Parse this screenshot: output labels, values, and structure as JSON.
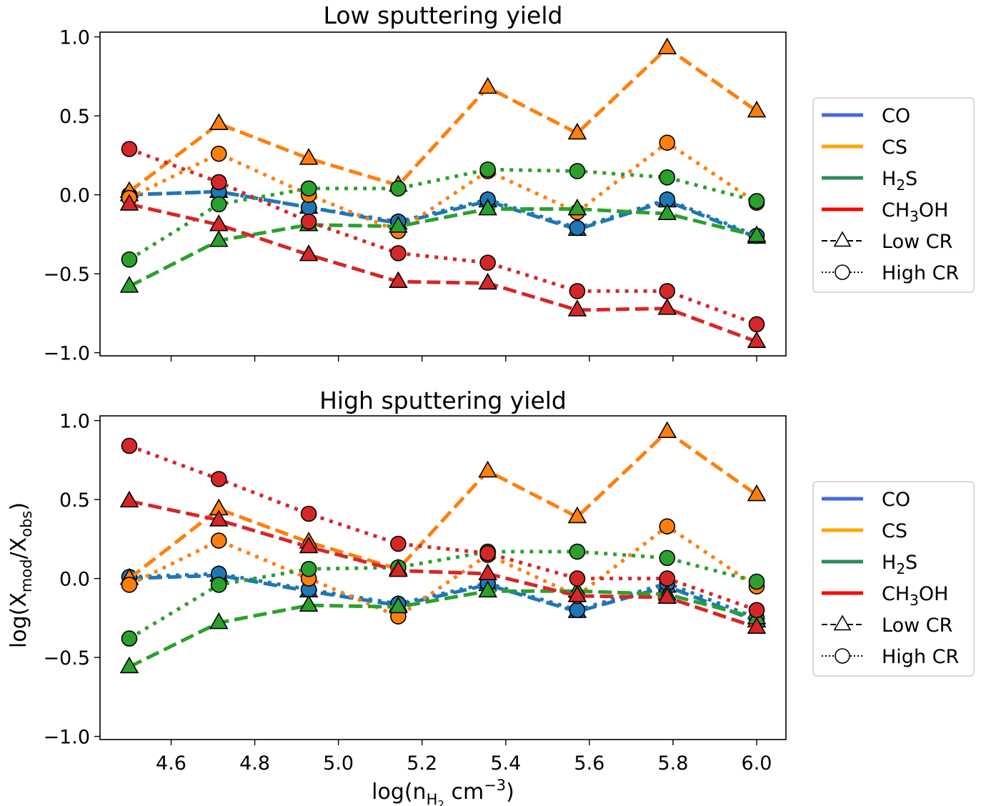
{
  "figure": {
    "ylabel": "log(X_mod/X_obs)",
    "xlabel": "log(n_H2 cm^-3)"
  },
  "legend": {
    "entries": [
      {
        "label": "CO",
        "color": "#4169e1",
        "kind": "line"
      },
      {
        "label": "CS",
        "color": "#ffa500",
        "kind": "line"
      },
      {
        "label": "H2S",
        "color": "#2e8b57",
        "kind": "line"
      },
      {
        "label": "CH3OH",
        "color": "#ff0000",
        "kind": "line"
      },
      {
        "label": "Low CR",
        "kind": "dashed-triangle"
      },
      {
        "label": "High CR",
        "kind": "dotted-circle"
      }
    ]
  },
  "chart_data": [
    {
      "type": "line",
      "title": "Low sputtering yield",
      "xlim": [
        4.43,
        6.07
      ],
      "ylim": [
        -1.02,
        1.03
      ],
      "xticks": [
        4.6,
        4.8,
        5.0,
        5.2,
        5.4,
        5.6,
        5.8,
        6.0
      ],
      "yticks": [
        -1.0,
        -0.5,
        0.0,
        0.5,
        1.0
      ],
      "show_xticklabels": false,
      "x": [
        4.5,
        4.714,
        4.929,
        5.143,
        5.357,
        5.571,
        5.786,
        6.0
      ],
      "series": [
        {
          "name": "CO",
          "cr": "Low CR",
          "marker": "triangle",
          "color": "#1f77b4",
          "values": [
            0.0,
            0.02,
            -0.08,
            -0.18,
            -0.04,
            -0.22,
            -0.04,
            -0.27
          ]
        },
        {
          "name": "CO",
          "cr": "High CR",
          "marker": "circle",
          "color": "#1f77b4",
          "values": [
            0.0,
            0.02,
            -0.08,
            -0.17,
            -0.03,
            -0.21,
            -0.03,
            -0.26
          ]
        },
        {
          "name": "CS",
          "cr": "Low CR",
          "marker": "triangle",
          "color": "#ff7f0e",
          "values": [
            0.02,
            0.45,
            0.23,
            0.06,
            0.68,
            0.39,
            0.93,
            0.53
          ]
        },
        {
          "name": "CS",
          "cr": "High CR",
          "marker": "circle",
          "color": "#ff7f0e",
          "values": [
            -0.02,
            0.26,
            0.0,
            -0.23,
            0.15,
            -0.11,
            0.33,
            -0.05
          ]
        },
        {
          "name": "H2S",
          "cr": "Low CR",
          "marker": "triangle",
          "color": "#2ca02c",
          "values": [
            -0.58,
            -0.29,
            -0.19,
            -0.2,
            -0.09,
            -0.09,
            -0.12,
            -0.26
          ]
        },
        {
          "name": "H2S",
          "cr": "High CR",
          "marker": "circle",
          "color": "#2ca02c",
          "values": [
            -0.41,
            -0.06,
            0.04,
            0.04,
            0.16,
            0.15,
            0.11,
            -0.04
          ]
        },
        {
          "name": "CH3OH",
          "cr": "Low CR",
          "marker": "triangle",
          "color": "#d62728",
          "values": [
            -0.06,
            -0.19,
            -0.38,
            -0.55,
            -0.56,
            -0.73,
            -0.72,
            -0.93
          ]
        },
        {
          "name": "CH3OH",
          "cr": "High CR",
          "marker": "circle",
          "color": "#d62728",
          "values": [
            0.29,
            0.08,
            -0.17,
            -0.37,
            -0.43,
            -0.61,
            -0.61,
            -0.82
          ]
        }
      ]
    },
    {
      "type": "line",
      "title": "High sputtering yield",
      "xlim": [
        4.43,
        6.07
      ],
      "ylim": [
        -1.02,
        1.03
      ],
      "xticks": [
        4.6,
        4.8,
        5.0,
        5.2,
        5.4,
        5.6,
        5.8,
        6.0
      ],
      "yticks": [
        -1.0,
        -0.5,
        0.0,
        0.5,
        1.0
      ],
      "show_xticklabels": true,
      "x": [
        4.5,
        4.714,
        4.929,
        5.143,
        5.357,
        5.571,
        5.786,
        6.0
      ],
      "series": [
        {
          "name": "CO",
          "cr": "Low CR",
          "marker": "triangle",
          "color": "#1f77b4",
          "values": [
            0.0,
            0.02,
            -0.08,
            -0.17,
            -0.04,
            -0.21,
            -0.05,
            -0.27
          ]
        },
        {
          "name": "CO",
          "cr": "High CR",
          "marker": "circle",
          "color": "#1f77b4",
          "values": [
            0.01,
            0.03,
            -0.07,
            -0.16,
            -0.03,
            -0.2,
            -0.03,
            -0.25
          ]
        },
        {
          "name": "CS",
          "cr": "Low CR",
          "marker": "triangle",
          "color": "#ff7f0e",
          "values": [
            0.0,
            0.44,
            0.23,
            0.06,
            0.68,
            0.39,
            0.93,
            0.53
          ]
        },
        {
          "name": "CS",
          "cr": "High CR",
          "marker": "circle",
          "color": "#ff7f0e",
          "values": [
            -0.04,
            0.24,
            0.0,
            -0.24,
            0.15,
            -0.11,
            0.33,
            -0.05
          ]
        },
        {
          "name": "H2S",
          "cr": "Low CR",
          "marker": "triangle",
          "color": "#2ca02c",
          "values": [
            -0.56,
            -0.28,
            -0.17,
            -0.18,
            -0.08,
            -0.08,
            -0.1,
            -0.25
          ]
        },
        {
          "name": "H2S",
          "cr": "High CR",
          "marker": "circle",
          "color": "#2ca02c",
          "values": [
            -0.38,
            -0.04,
            0.06,
            0.07,
            0.17,
            0.17,
            0.13,
            -0.02
          ]
        },
        {
          "name": "CH3OH",
          "cr": "Low CR",
          "marker": "triangle",
          "color": "#d62728",
          "values": [
            0.49,
            0.37,
            0.2,
            0.05,
            0.03,
            -0.11,
            -0.12,
            -0.31
          ]
        },
        {
          "name": "CH3OH",
          "cr": "High CR",
          "marker": "circle",
          "color": "#d62728",
          "values": [
            0.84,
            0.63,
            0.41,
            0.22,
            0.16,
            0.0,
            0.0,
            -0.2
          ]
        }
      ]
    }
  ]
}
